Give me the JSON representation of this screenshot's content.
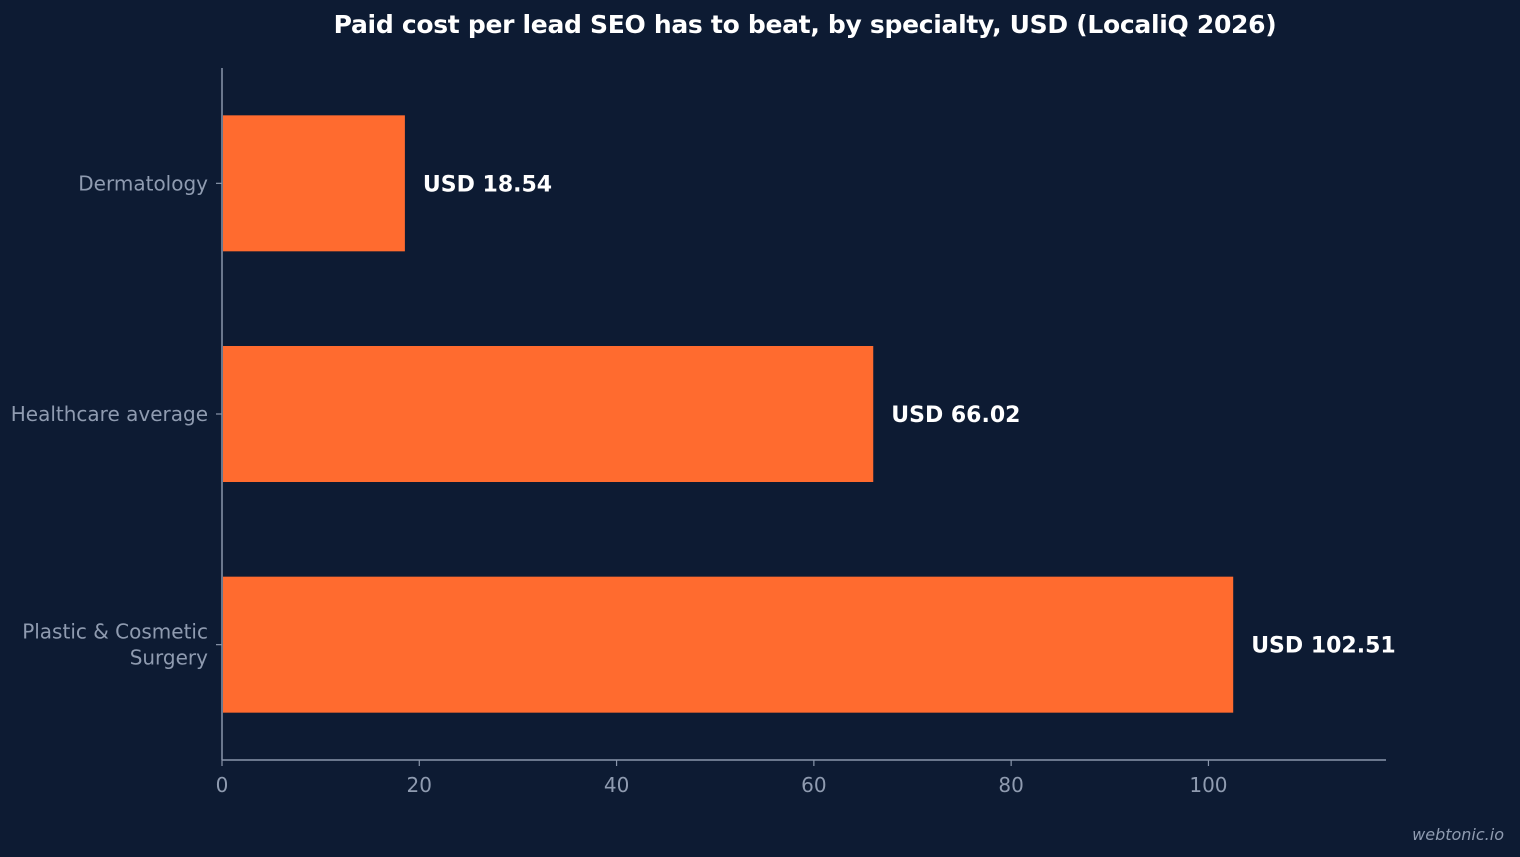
{
  "chart_data": {
    "type": "bar",
    "orientation": "horizontal",
    "title": "Paid cost per lead SEO has to beat, by specialty, USD (LocaliQ 2026)",
    "xlabel": "",
    "ylabel": "",
    "categories": [
      [
        "Dermatology"
      ],
      [
        "Healthcare average"
      ],
      [
        "Plastic & Cosmetic",
        "Surgery"
      ]
    ],
    "values": [
      18.54,
      66.02,
      102.51
    ],
    "data_labels": [
      "USD 18.54",
      "USD 66.02",
      "USD 102.51"
    ],
    "xlim": [
      0,
      118
    ],
    "xticks": [
      0,
      20,
      40,
      60,
      80,
      100
    ],
    "grid": false,
    "legend": "none"
  },
  "colors": {
    "background": "#0d1b33",
    "bar": "#ff6b2f",
    "axis": "#8a96ab",
    "tick_text": "#8f9bb0",
    "label_text": "#ffffff"
  },
  "watermark": "webtonic.io"
}
